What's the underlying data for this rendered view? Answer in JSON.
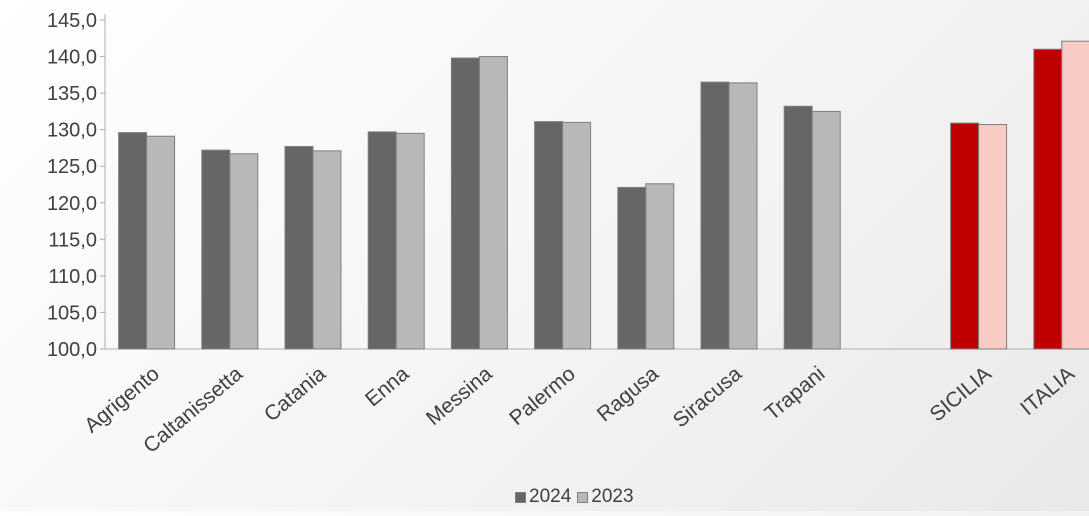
{
  "chart_data": {
    "type": "bar",
    "categories": [
      "Agrigento",
      "Caltanissetta",
      "Catania",
      "Enna",
      "Messina",
      "Palermo",
      "Ragusa",
      "Siracusa",
      "Trapani",
      "",
      "SICILIA",
      "ITALIA"
    ],
    "series": [
      {
        "name": "2024",
        "values": [
          129.6,
          127.2,
          127.7,
          129.7,
          139.8,
          131.1,
          122.1,
          136.5,
          133.2,
          null,
          130.9,
          141.0
        ]
      },
      {
        "name": "2023",
        "values": [
          129.1,
          126.7,
          127.1,
          129.5,
          140.0,
          131.0,
          122.6,
          136.4,
          132.5,
          null,
          130.7,
          142.1
        ]
      }
    ],
    "y_ticks": [
      "100,0",
      "105,0",
      "110,0",
      "115,0",
      "120,0",
      "125,0",
      "130,0",
      "135,0",
      "140,0",
      "145,0"
    ],
    "ylim": [
      100,
      145
    ],
    "title": "",
    "xlabel": "",
    "ylabel": "",
    "grid": false,
    "legend_position": "bottom",
    "colors": {
      "2024": "#666666",
      "2023": "#b8b8b8",
      "2024_highlight": "#c00000",
      "2023_highlight": "#f8cbc4",
      "bar_edge": "#7f7f7f",
      "axis": "#b0b0b0",
      "text": "#404040"
    },
    "highlight_categories": [
      "SICILIA",
      "ITALIA"
    ]
  }
}
